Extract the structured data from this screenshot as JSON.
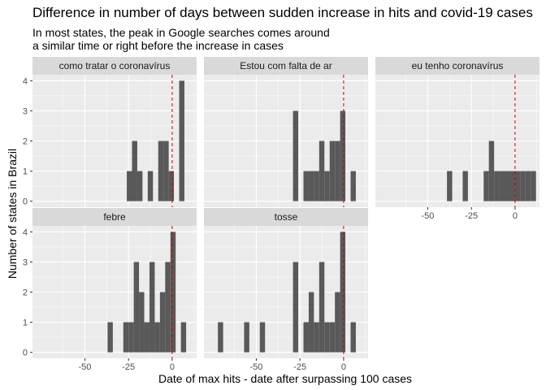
{
  "title": "Difference in number of days between sudden increase in hits and covid-19 cases",
  "subtitle_lines": [
    "In most states, the peak in Google searches comes around",
    "a similar time or right before the increase in cases"
  ],
  "chart_data": {
    "type": "bar",
    "xlabel": "Date of max hits - date after surpassing 100 cases",
    "ylabel": "Number of states in Brazil",
    "xlim": [
      -80,
      14
    ],
    "ylim": [
      -0.2,
      4.2
    ],
    "x_ticks": [
      -50,
      -25,
      0
    ],
    "y_ticks": [
      0,
      1,
      2,
      3,
      4
    ],
    "bin_width": 3,
    "reference_line_x": 0,
    "colors": {
      "bar": "#595959",
      "panel_bg": "#ebebeb",
      "grid": "#ffffff",
      "strip_bg": "#d9d9d9",
      "reference_line": "#cc0000"
    },
    "panels": [
      {
        "name": "como tratar o coronavírus",
        "bins": [
          {
            "x": -24.5,
            "count": 1
          },
          {
            "x": -21.5,
            "count": 2
          },
          {
            "x": -18.5,
            "count": 1
          },
          {
            "x": -12.5,
            "count": 1
          },
          {
            "x": -6.5,
            "count": 2
          },
          {
            "x": -3.5,
            "count": 2
          },
          {
            "x": -0.5,
            "count": 1
          },
          {
            "x": 5.5,
            "count": 4
          }
        ]
      },
      {
        "name": "Estou com falta de ar",
        "bins": [
          {
            "x": -27.5,
            "count": 3
          },
          {
            "x": -21.5,
            "count": 1
          },
          {
            "x": -18.5,
            "count": 1
          },
          {
            "x": -15.5,
            "count": 1
          },
          {
            "x": -12.5,
            "count": 2
          },
          {
            "x": -9.5,
            "count": 1
          },
          {
            "x": -6.5,
            "count": 2
          },
          {
            "x": -3.5,
            "count": 2
          },
          {
            "x": -0.5,
            "count": 3
          },
          {
            "x": 5.5,
            "count": 1
          }
        ]
      },
      {
        "name": "eu tenho coronavírus",
        "bins": [
          {
            "x": -37.5,
            "count": 1
          },
          {
            "x": -28.5,
            "count": 1
          },
          {
            "x": -16.5,
            "count": 1
          },
          {
            "x": -13.5,
            "count": 2
          },
          {
            "x": -10.5,
            "count": 1
          },
          {
            "x": -7.5,
            "count": 1
          },
          {
            "x": -4.5,
            "count": 1
          },
          {
            "x": -1.5,
            "count": 1
          },
          {
            "x": 1.5,
            "count": 1
          },
          {
            "x": 4.5,
            "count": 1
          },
          {
            "x": 7.5,
            "count": 1
          },
          {
            "x": 10.5,
            "count": 1
          }
        ]
      },
      {
        "name": "febre",
        "bins": [
          {
            "x": -35.5,
            "count": 1
          },
          {
            "x": -26.5,
            "count": 1
          },
          {
            "x": -23.5,
            "count": 1
          },
          {
            "x": -20.5,
            "count": 3
          },
          {
            "x": -17.5,
            "count": 2
          },
          {
            "x": -14.5,
            "count": 1
          },
          {
            "x": -11.5,
            "count": 3
          },
          {
            "x": -8.5,
            "count": 1
          },
          {
            "x": -5.5,
            "count": 2
          },
          {
            "x": -2.5,
            "count": 3
          },
          {
            "x": 0.5,
            "count": 4
          },
          {
            "x": 6.5,
            "count": 1
          }
        ]
      },
      {
        "name": "tosse",
        "bins": [
          {
            "x": -70.5,
            "count": 1
          },
          {
            "x": -55.5,
            "count": 1
          },
          {
            "x": -46.5,
            "count": 1
          },
          {
            "x": -27.5,
            "count": 3
          },
          {
            "x": -21.5,
            "count": 1
          },
          {
            "x": -18.5,
            "count": 2
          },
          {
            "x": -15.5,
            "count": 1
          },
          {
            "x": -12.5,
            "count": 3
          },
          {
            "x": -9.5,
            "count": 1
          },
          {
            "x": -6.5,
            "count": 1
          },
          {
            "x": -3.5,
            "count": 2
          },
          {
            "x": -0.5,
            "count": 4
          },
          {
            "x": 5.5,
            "count": 1
          }
        ]
      }
    ]
  }
}
